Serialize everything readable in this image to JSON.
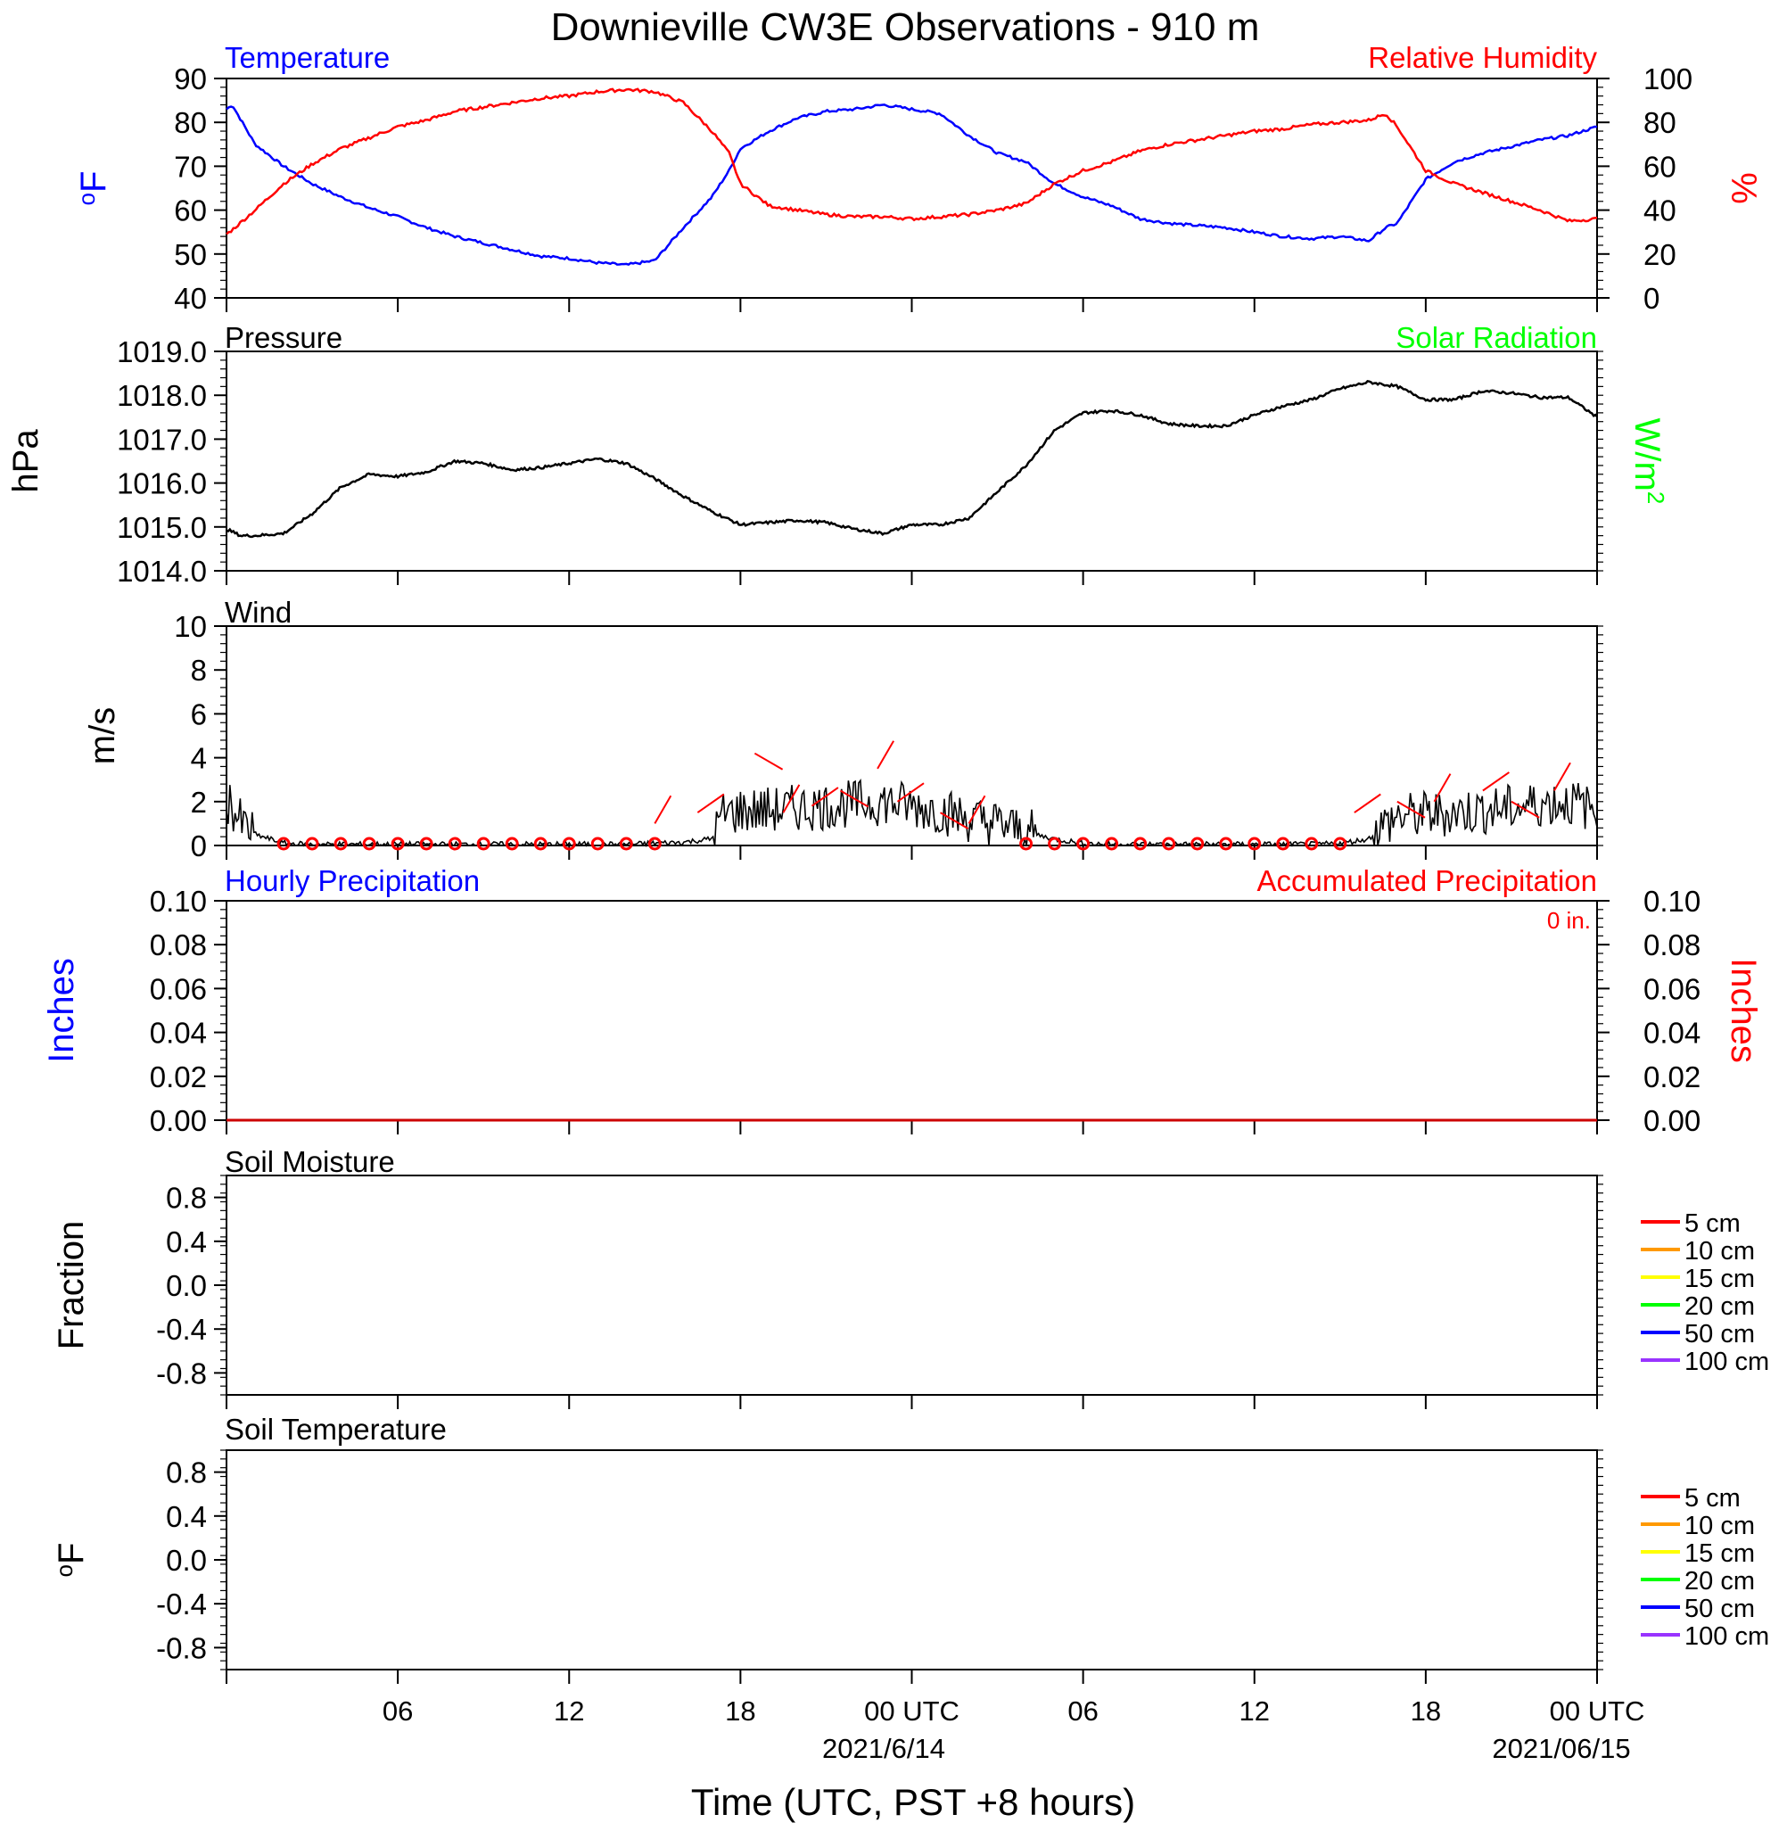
{
  "title": "Downieville CW3E Observations - 910 m",
  "x_axis": {
    "title": "Time (UTC, PST +8 hours)",
    "tick_labels": [
      "06",
      "12",
      "18",
      "00 UTC",
      "06",
      "12",
      "18",
      "00 UTC"
    ],
    "date_labels": [
      "2021/6/14",
      "2021/06/15"
    ]
  },
  "colors": {
    "temperature": "#0000ff",
    "humidity": "#ff0000",
    "solar": "#00ff00",
    "pressure": "#000000",
    "precip_hourly": "#0000ff",
    "precip_accum": "#ff0000"
  },
  "chart_data": [
    {
      "type": "line",
      "left_title": "Temperature",
      "right_title": "Relative Humidity",
      "ylabel_left": "oF",
      "ylabel_right": "%",
      "x_range_hours": [
        0,
        48
      ],
      "ylim_left": [
        40,
        90
      ],
      "ylim_right": [
        0,
        100
      ],
      "yticks_left": [
        "90",
        "80",
        "70",
        "60",
        "50",
        "40"
      ],
      "yticks_right": [
        "100",
        "80",
        "60",
        "40",
        "20",
        "0"
      ],
      "series": [
        {
          "name": "Temperature",
          "axis": "left",
          "x": [
            0,
            0.2,
            1,
            2,
            3,
            4,
            5,
            6,
            7,
            8,
            9,
            10,
            11,
            12,
            13,
            14,
            15,
            16,
            17,
            17.6,
            18,
            19,
            20,
            21,
            22,
            23,
            24,
            25,
            26,
            27,
            28,
            29,
            30,
            31,
            32,
            33,
            34,
            35,
            36,
            37,
            38,
            39,
            40,
            40.6,
            41,
            42,
            43,
            44,
            45,
            46,
            47,
            48
          ],
          "values": [
            83,
            84,
            75,
            70,
            66,
            63,
            60.5,
            58.5,
            56,
            54,
            52.5,
            51,
            49.5,
            49,
            48,
            47.5,
            48.5,
            56,
            63,
            69,
            74,
            78,
            81,
            82.5,
            83,
            84,
            83,
            82,
            77,
            73,
            71,
            66,
            63,
            61,
            58,
            57,
            56.5,
            56,
            55,
            54,
            53.5,
            54,
            53,
            56,
            57,
            67,
            71,
            73,
            74.5,
            76,
            77,
            79
          ]
        },
        {
          "name": "Relative Humidity",
          "axis": "right",
          "x": [
            0,
            0.2,
            1,
            2,
            3,
            4,
            5,
            6,
            7,
            8,
            9,
            10,
            11,
            12,
            13,
            14,
            15,
            16,
            17,
            17.6,
            18,
            19,
            20,
            21,
            22,
            23,
            24,
            25,
            26,
            27,
            28,
            29,
            30,
            31,
            32,
            33,
            34,
            35,
            36,
            37,
            38,
            39,
            40,
            40.6,
            41,
            42,
            43,
            44,
            45,
            46,
            47,
            48
          ],
          "values": [
            29,
            31,
            40,
            52,
            61,
            68,
            73,
            78,
            81,
            85,
            87,
            89,
            91,
            92,
            94,
            95,
            94,
            89,
            76,
            66,
            52,
            42,
            40,
            38,
            37,
            37,
            36,
            37,
            38,
            40,
            43,
            52,
            58,
            62,
            67,
            70,
            72,
            74,
            76,
            77,
            79,
            80,
            81,
            84,
            78,
            58,
            52,
            48,
            44,
            40,
            35,
            36
          ]
        }
      ]
    },
    {
      "type": "line",
      "left_title": "Pressure",
      "right_title": "Solar Radiation",
      "ylabel_left": "hPa",
      "ylabel_right": "W/m2",
      "ylim_left": [
        1014.0,
        1019.0
      ],
      "yticks_left": [
        "1019.0",
        "1018.0",
        "1017.0",
        "1016.0",
        "1015.0",
        "1014.0"
      ],
      "series": [
        {
          "name": "Pressure",
          "axis": "left",
          "x": [
            0,
            0.5,
            1,
            2,
            3,
            4,
            5,
            6,
            7,
            8,
            9,
            10,
            11,
            12,
            13,
            14,
            15,
            16,
            17,
            18,
            19,
            20,
            21,
            22,
            23,
            24,
            25,
            26,
            27,
            28,
            29,
            30,
            31,
            32,
            33,
            34,
            35,
            36,
            37,
            38,
            39,
            40,
            41,
            42,
            43,
            44,
            45,
            46,
            47,
            48
          ],
          "values": [
            1014.95,
            1014.8,
            1014.8,
            1014.85,
            1015.3,
            1015.9,
            1016.2,
            1016.15,
            1016.25,
            1016.5,
            1016.45,
            1016.3,
            1016.35,
            1016.45,
            1016.55,
            1016.45,
            1016.1,
            1015.7,
            1015.35,
            1015.05,
            1015.1,
            1015.15,
            1015.1,
            1014.95,
            1014.85,
            1015.05,
            1015.05,
            1015.2,
            1015.8,
            1016.4,
            1017.2,
            1017.6,
            1017.65,
            1017.55,
            1017.35,
            1017.3,
            1017.3,
            1017.55,
            1017.75,
            1017.9,
            1018.15,
            1018.3,
            1018.2,
            1017.9,
            1017.9,
            1018.1,
            1018.05,
            1017.95,
            1017.95,
            1017.5
          ]
        }
      ]
    },
    {
      "type": "line",
      "left_title": "Wind",
      "ylabel_left": "m/s",
      "ylim_left": [
        0,
        10
      ],
      "yticks_left": [
        "10",
        "8",
        "6",
        "4",
        "2",
        "0"
      ],
      "series": [
        {
          "name": "Wind speed",
          "axis": "left",
          "x": [
            0,
            0.5,
            1,
            2,
            3,
            4,
            5,
            6,
            7,
            8,
            9,
            10,
            11,
            12,
            13,
            14,
            15,
            16,
            17,
            17.4,
            18,
            19,
            20,
            21,
            22,
            23,
            24,
            25,
            26,
            27,
            28,
            29,
            30,
            31,
            32,
            33,
            34,
            35,
            36,
            37,
            38,
            39,
            40,
            40.4,
            41,
            42,
            43,
            44,
            45,
            46,
            47,
            48
          ],
          "values": [
            2.2,
            1.0,
            0.5,
            0.1,
            0.05,
            0.05,
            0.05,
            0.05,
            0.05,
            0.05,
            0.05,
            0.05,
            0.05,
            0.05,
            0.05,
            0.05,
            0.1,
            0.15,
            0.3,
            1.4,
            1.6,
            1.6,
            1.7,
            1.8,
            1.9,
            2.0,
            1.8,
            1.6,
            1.2,
            1.0,
            0.6,
            0.3,
            0.1,
            0.05,
            0.05,
            0.05,
            0.05,
            0.05,
            0.05,
            0.05,
            0.05,
            0.1,
            0.3,
            0.8,
            1.3,
            1.4,
            1.5,
            1.6,
            1.7,
            1.9,
            2.0,
            1.6
          ]
        }
      ],
      "calm_markers_hours": [
        2,
        3,
        4,
        5,
        6,
        7,
        8,
        9,
        10,
        11,
        12,
        13,
        14,
        15,
        28,
        29,
        30,
        31,
        32,
        33,
        34,
        35,
        36,
        37,
        38,
        39
      ],
      "wind_barbs": [
        {
          "x": 15,
          "speed": 1
        },
        {
          "x": 16.5,
          "speed": 1.5
        },
        {
          "x": 18.5,
          "speed": 4.2
        },
        {
          "x": 19.5,
          "speed": 1.5
        },
        {
          "x": 20.5,
          "speed": 1.8
        },
        {
          "x": 21.5,
          "speed": 2.5
        },
        {
          "x": 22.8,
          "speed": 3.5
        },
        {
          "x": 23.5,
          "speed": 2
        },
        {
          "x": 25,
          "speed": 1.5
        },
        {
          "x": 26,
          "speed": 1
        },
        {
          "x": 39.5,
          "speed": 1.5
        },
        {
          "x": 41,
          "speed": 2
        },
        {
          "x": 42.3,
          "speed": 2
        },
        {
          "x": 44,
          "speed": 2.5
        },
        {
          "x": 45,
          "speed": 2
        },
        {
          "x": 46.5,
          "speed": 2.5
        }
      ]
    },
    {
      "type": "line",
      "left_title": "Hourly Precipitation",
      "right_title": "Accumulated Precipitation",
      "annotation": "0 in.",
      "ylabel_left": "Inches",
      "ylabel_right": "Inches",
      "ylim_left": [
        0,
        0.1
      ],
      "ylim_right": [
        0,
        0.1
      ],
      "yticks_left": [
        "0.10",
        "0.08",
        "0.06",
        "0.04",
        "0.02",
        "0.00"
      ],
      "yticks_right": [
        "0.10",
        "0.08",
        "0.06",
        "0.04",
        "0.02",
        "0.00"
      ],
      "series": [
        {
          "name": "Accumulated Precipitation",
          "axis": "right",
          "x": [
            0,
            48
          ],
          "values": [
            0,
            0
          ]
        }
      ]
    },
    {
      "type": "line",
      "left_title": "Soil Moisture",
      "ylabel_left": "Fraction",
      "ylim_left": [
        -1,
        1
      ],
      "yticks_left": [
        "0.8",
        "0.4",
        "0.0",
        "-0.4",
        "-0.8"
      ],
      "legend": [
        {
          "label": "5 cm",
          "color": "#ff0000"
        },
        {
          "label": "10 cm",
          "color": "#ff9900"
        },
        {
          "label": "15 cm",
          "color": "#ffff00"
        },
        {
          "label": "20 cm",
          "color": "#00ff00"
        },
        {
          "label": "50 cm",
          "color": "#0000ff"
        },
        {
          "label": "100 cm",
          "color": "#9933ff"
        }
      ]
    },
    {
      "type": "line",
      "left_title": "Soil Temperature",
      "ylabel_left": "oF",
      "ylim_left": [
        -1,
        1
      ],
      "yticks_left": [
        "0.8",
        "0.4",
        "0.0",
        "-0.4",
        "-0.8"
      ],
      "legend": [
        {
          "label": "5 cm",
          "color": "#ff0000"
        },
        {
          "label": "10 cm",
          "color": "#ff9900"
        },
        {
          "label": "15 cm",
          "color": "#ffff00"
        },
        {
          "label": "20 cm",
          "color": "#00ff00"
        },
        {
          "label": "50 cm",
          "color": "#0000ff"
        },
        {
          "label": "100 cm",
          "color": "#9933ff"
        }
      ]
    }
  ]
}
